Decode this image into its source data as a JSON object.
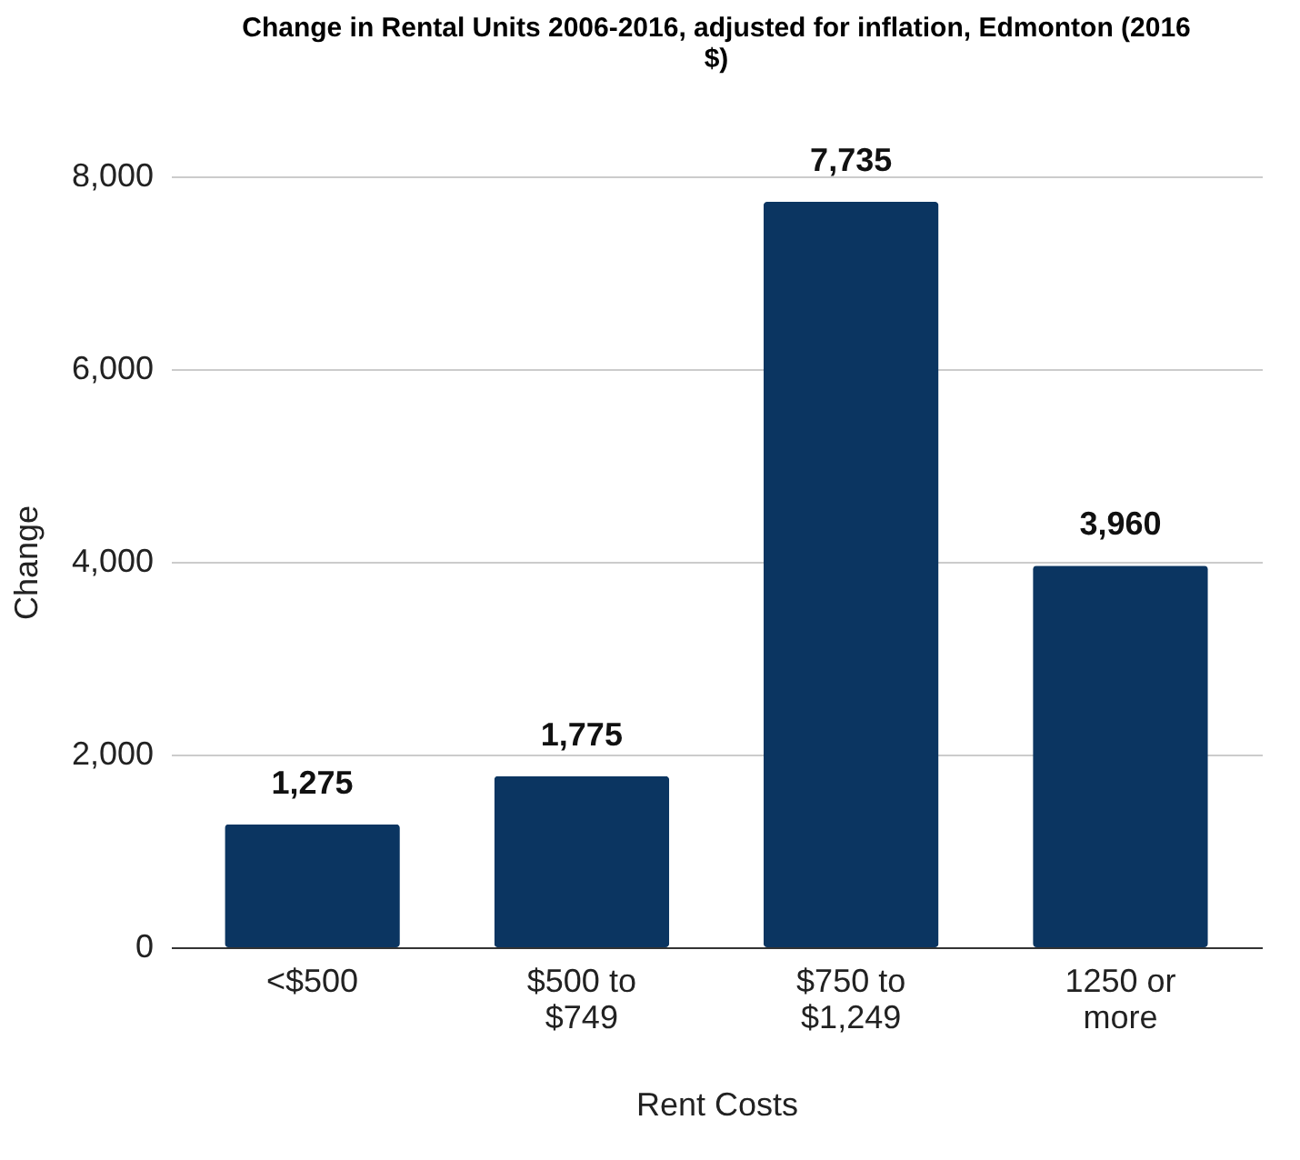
{
  "chart_data": {
    "type": "bar",
    "title": "Change in Rental Units 2006-2016, adjusted for inflation, Edmonton (2016 $)",
    "xlabel": "Rent Costs",
    "ylabel": "Change",
    "categories": [
      "<$500",
      "$500 to $749",
      "$750 to $1,249",
      "1250 or more"
    ],
    "values": [
      1275,
      1775,
      7735,
      3960
    ],
    "value_labels": [
      "1,275",
      "1,775",
      "7,735",
      "3,960"
    ],
    "color": "#0b3561",
    "ylim": [
      0,
      8000
    ],
    "yticks": [
      0,
      {
        "value": 2000,
        "label": "2,000"
      },
      {
        "value": 4000,
        "label": "4,000"
      },
      {
        "value": 6000,
        "label": "6,000"
      },
      {
        "value": 8000,
        "label": "8,000"
      }
    ],
    "grid": "y"
  }
}
